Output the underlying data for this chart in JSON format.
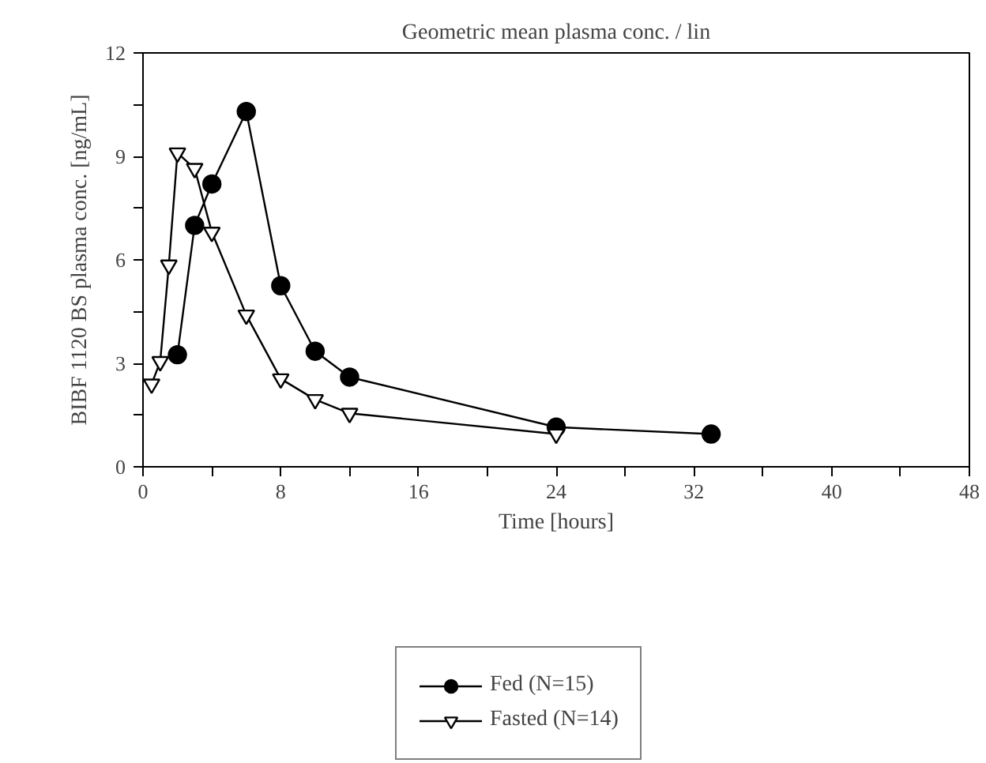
{
  "chart_data": {
    "type": "line",
    "title": "Geometric mean plasma conc. / lin",
    "xlabel": "Time [hours]",
    "ylabel": "BIBF 1120 BS plasma conc. [ng/mL]",
    "series": [
      {
        "name": "Fed (N=15)",
        "color": "#000000",
        "marker": "circle",
        "x": [
          2,
          3,
          4,
          6,
          8,
          10,
          12,
          24,
          33
        ],
        "values": [
          3.25,
          7.0,
          8.2,
          10.3,
          5.25,
          3.35,
          2.6,
          1.15,
          0.95
        ]
      },
      {
        "name": "Fasted (N=14)",
        "color": "#000000",
        "marker": "triangle",
        "x": [
          0.5,
          1,
          1.5,
          2,
          3,
          4,
          6,
          8,
          10,
          12,
          24
        ],
        "values": [
          2.4,
          3.05,
          5.85,
          9.1,
          8.65,
          6.8,
          4.4,
          2.55,
          1.95,
          1.55,
          0.95
        ]
      }
    ],
    "xlim": [
      0,
      48
    ],
    "ylim": [
      0,
      12
    ],
    "xticks": [
      0,
      {
        "value": 4,
        "label": null
      },
      8,
      {
        "value": 12,
        "label": null
      },
      16,
      {
        "value": 20,
        "label": null
      },
      24,
      {
        "value": 28,
        "label": null
      },
      32,
      {
        "value": 36,
        "label": null
      },
      40,
      {
        "value": 44,
        "label": null
      },
      48
    ],
    "yticks": [
      0,
      {
        "value": 1.5,
        "label": null
      },
      3,
      {
        "value": 4.5,
        "label": null
      },
      6,
      {
        "value": 7.5,
        "label": null
      },
      9,
      {
        "value": 10.5,
        "label": null
      },
      12
    ],
    "grid": false,
    "legend": "bottom",
    "line_style": "solid"
  }
}
